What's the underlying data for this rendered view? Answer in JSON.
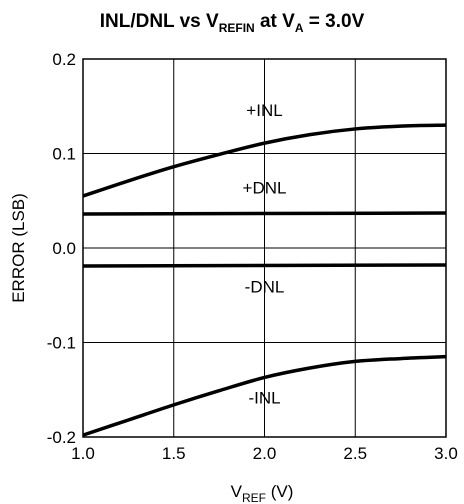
{
  "chart_data": {
    "type": "line",
    "title": {
      "main": "INL/DNL vs V",
      "main_sub": "REFIN",
      "suffix1": " at V",
      "suffix_sub": "A",
      "suffix2": " = 3.0V"
    },
    "xlabel": {
      "main": "V",
      "sub": "REF",
      "suffix": " (V)"
    },
    "ylabel": "ERROR (LSB)",
    "xlim": [
      1.0,
      3.0
    ],
    "ylim": [
      -0.2,
      0.2
    ],
    "x_ticks": [
      "1.0",
      "1.5",
      "2.0",
      "2.5",
      "3.0"
    ],
    "y_ticks": [
      "0.2",
      "0.1",
      "0.0",
      "-0.1",
      "-0.2"
    ],
    "x_tick_values": [
      1.0,
      1.5,
      2.0,
      2.5,
      3.0
    ],
    "y_tick_values": [
      0.2,
      0.1,
      0.0,
      -0.1,
      -0.2
    ],
    "grid": true,
    "series": [
      {
        "name": "+INL",
        "x": [
          1.0,
          1.25,
          1.5,
          1.75,
          2.0,
          2.25,
          2.5,
          2.75,
          3.0
        ],
        "y": [
          0.055,
          0.071,
          0.086,
          0.099,
          0.111,
          0.12,
          0.126,
          0.129,
          0.13
        ]
      },
      {
        "name": "+DNL",
        "x": [
          1.0,
          3.0
        ],
        "y": [
          0.036,
          0.037
        ]
      },
      {
        "name": "-DNL",
        "x": [
          1.0,
          3.0
        ],
        "y": [
          -0.019,
          -0.018
        ]
      },
      {
        "name": "-INL",
        "x": [
          1.0,
          1.25,
          1.5,
          1.75,
          2.0,
          2.25,
          2.5,
          2.75,
          3.0
        ],
        "y": [
          -0.198,
          -0.182,
          -0.166,
          -0.151,
          -0.137,
          -0.127,
          -0.12,
          -0.117,
          -0.115
        ]
      }
    ],
    "series_labels": [
      "+INL",
      "+DNL",
      "-DNL",
      "-INL"
    ]
  }
}
